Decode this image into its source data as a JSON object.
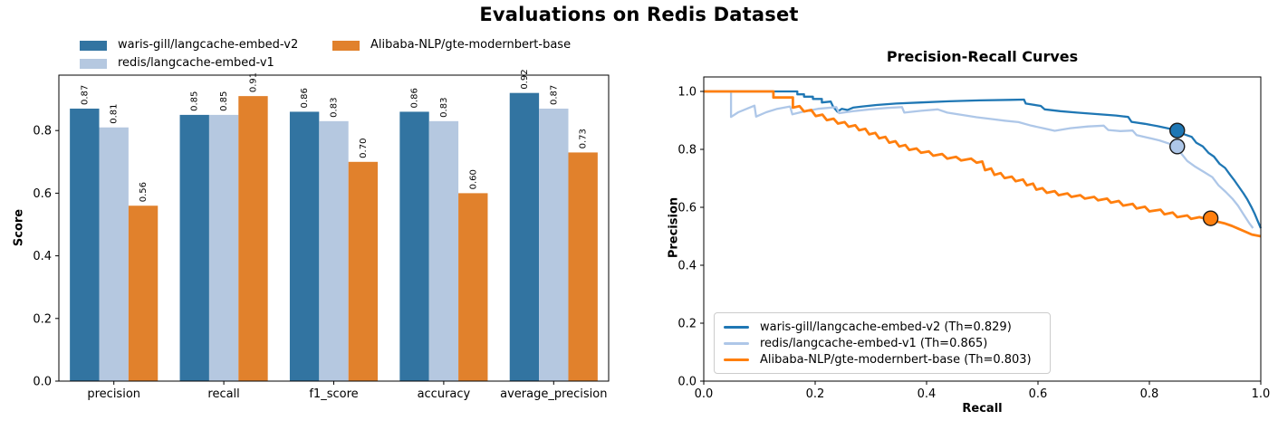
{
  "figure_title": "Evaluations on Redis Dataset",
  "chart_data": [
    {
      "type": "bar",
      "ylabel": "Score",
      "categories": [
        "precision",
        "recall",
        "f1_score",
        "accuracy",
        "average_precision"
      ],
      "yticks": [
        0.0,
        0.2,
        0.4,
        0.6,
        0.8
      ],
      "ylim": [
        0,
        0.977
      ],
      "value_label_format": ".2f",
      "legend_position": "upper-left frameless 2-col",
      "series": [
        {
          "name": "waris-gill/langcache-embed-v2",
          "color": "#3274a1",
          "values": [
            0.87,
            0.85,
            0.86,
            0.86,
            0.92
          ]
        },
        {
          "name": "redis/langcache-embed-v1",
          "color": "#b5c8e0",
          "values": [
            0.81,
            0.85,
            0.83,
            0.83,
            0.87
          ]
        },
        {
          "name": "Alibaba-NLP/gte-modernbert-base",
          "color": "#e1812c",
          "values": [
            0.56,
            0.91,
            0.7,
            0.6,
            0.73
          ]
        }
      ]
    },
    {
      "type": "line",
      "title": "Precision-Recall Curves",
      "xlabel": "Recall",
      "ylabel": "Precision",
      "xlim": [
        0,
        1.0
      ],
      "ylim": [
        0,
        1.05
      ],
      "xticks": [
        0.0,
        0.2,
        0.4,
        0.6,
        0.8,
        1.0
      ],
      "yticks": [
        0.0,
        0.2,
        0.4,
        0.6,
        0.8,
        1.0
      ],
      "legend_position": "lower-left framed",
      "series": [
        {
          "name": "waris-gill/langcache-embed-v2 (Th=0.829)",
          "color": "#1f77b4",
          "threshold_marker": [
            0.85,
            0.865
          ],
          "points": [
            [
              0.0,
              1.0
            ],
            [
              0.168,
              1.0
            ],
            [
              0.168,
              0.99
            ],
            [
              0.18,
              0.99
            ],
            [
              0.18,
              0.982
            ],
            [
              0.196,
              0.982
            ],
            [
              0.196,
              0.974
            ],
            [
              0.212,
              0.974
            ],
            [
              0.212,
              0.962
            ],
            [
              0.228,
              0.965
            ],
            [
              0.232,
              0.948
            ],
            [
              0.24,
              0.93
            ],
            [
              0.248,
              0.94
            ],
            [
              0.258,
              0.936
            ],
            [
              0.268,
              0.944
            ],
            [
              0.285,
              0.948
            ],
            [
              0.31,
              0.953
            ],
            [
              0.345,
              0.958
            ],
            [
              0.39,
              0.962
            ],
            [
              0.44,
              0.966
            ],
            [
              0.495,
              0.969
            ],
            [
              0.55,
              0.971
            ],
            [
              0.575,
              0.972
            ],
            [
              0.578,
              0.958
            ],
            [
              0.605,
              0.95
            ],
            [
              0.612,
              0.938
            ],
            [
              0.64,
              0.932
            ],
            [
              0.67,
              0.927
            ],
            [
              0.705,
              0.922
            ],
            [
              0.74,
              0.917
            ],
            [
              0.762,
              0.912
            ],
            [
              0.768,
              0.895
            ],
            [
              0.792,
              0.888
            ],
            [
              0.815,
              0.88
            ],
            [
              0.835,
              0.872
            ],
            [
              0.85,
              0.865
            ],
            [
              0.863,
              0.852
            ],
            [
              0.876,
              0.843
            ],
            [
              0.884,
              0.823
            ],
            [
              0.896,
              0.81
            ],
            [
              0.906,
              0.788
            ],
            [
              0.916,
              0.775
            ],
            [
              0.926,
              0.75
            ],
            [
              0.936,
              0.736
            ],
            [
              0.945,
              0.712
            ],
            [
              0.953,
              0.692
            ],
            [
              0.961,
              0.67
            ],
            [
              0.969,
              0.648
            ],
            [
              0.976,
              0.627
            ],
            [
              0.983,
              0.602
            ],
            [
              0.989,
              0.578
            ],
            [
              0.994,
              0.555
            ],
            [
              1.0,
              0.528
            ]
          ]
        },
        {
          "name": "redis/langcache-embed-v1 (Th=0.865)",
          "color": "#aec7e8",
          "threshold_marker": [
            0.85,
            0.81
          ],
          "points": [
            [
              0.0,
              1.0
            ],
            [
              0.049,
              1.0
            ],
            [
              0.049,
              0.912
            ],
            [
              0.062,
              0.928
            ],
            [
              0.078,
              0.941
            ],
            [
              0.091,
              0.951
            ],
            [
              0.094,
              0.913
            ],
            [
              0.112,
              0.928
            ],
            [
              0.132,
              0.94
            ],
            [
              0.155,
              0.948
            ],
            [
              0.159,
              0.921
            ],
            [
              0.18,
              0.931
            ],
            [
              0.205,
              0.94
            ],
            [
              0.238,
              0.946
            ],
            [
              0.243,
              0.925
            ],
            [
              0.268,
              0.932
            ],
            [
              0.298,
              0.938
            ],
            [
              0.33,
              0.943
            ],
            [
              0.356,
              0.946
            ],
            [
              0.36,
              0.927
            ],
            [
              0.39,
              0.933
            ],
            [
              0.42,
              0.938
            ],
            [
              0.437,
              0.927
            ],
            [
              0.463,
              0.919
            ],
            [
              0.49,
              0.911
            ],
            [
              0.515,
              0.905
            ],
            [
              0.54,
              0.899
            ],
            [
              0.565,
              0.894
            ],
            [
              0.588,
              0.882
            ],
            [
              0.612,
              0.872
            ],
            [
              0.63,
              0.864
            ],
            [
              0.658,
              0.873
            ],
            [
              0.69,
              0.879
            ],
            [
              0.718,
              0.882
            ],
            [
              0.726,
              0.867
            ],
            [
              0.748,
              0.863
            ],
            [
              0.77,
              0.865
            ],
            [
              0.777,
              0.849
            ],
            [
              0.798,
              0.84
            ],
            [
              0.818,
              0.831
            ],
            [
              0.838,
              0.818
            ],
            [
              0.85,
              0.81
            ],
            [
              0.857,
              0.786
            ],
            [
              0.868,
              0.76
            ],
            [
              0.881,
              0.742
            ],
            [
              0.898,
              0.722
            ],
            [
              0.913,
              0.704
            ],
            [
              0.924,
              0.676
            ],
            [
              0.937,
              0.653
            ],
            [
              0.949,
              0.63
            ],
            [
              0.959,
              0.606
            ],
            [
              0.969,
              0.576
            ],
            [
              0.979,
              0.546
            ],
            [
              0.986,
              0.528
            ]
          ]
        },
        {
          "name": "Alibaba-NLP/gte-modernbert-base (Th=0.803)",
          "color": "#ff7f0e",
          "threshold_marker": [
            0.91,
            0.562
          ],
          "points": [
            [
              0.0,
              1.0
            ],
            [
              0.125,
              1.0
            ],
            [
              0.125,
              0.979
            ],
            [
              0.16,
              0.979
            ],
            [
              0.16,
              0.944
            ],
            [
              0.172,
              0.949
            ],
            [
              0.18,
              0.931
            ],
            [
              0.193,
              0.936
            ],
            [
              0.201,
              0.915
            ],
            [
              0.213,
              0.92
            ],
            [
              0.221,
              0.901
            ],
            [
              0.233,
              0.906
            ],
            [
              0.241,
              0.889
            ],
            [
              0.253,
              0.894
            ],
            [
              0.26,
              0.878
            ],
            [
              0.272,
              0.883
            ],
            [
              0.279,
              0.866
            ],
            [
              0.29,
              0.871
            ],
            [
              0.297,
              0.852
            ],
            [
              0.308,
              0.857
            ],
            [
              0.315,
              0.838
            ],
            [
              0.326,
              0.843
            ],
            [
              0.333,
              0.823
            ],
            [
              0.344,
              0.828
            ],
            [
              0.351,
              0.81
            ],
            [
              0.362,
              0.815
            ],
            [
              0.369,
              0.798
            ],
            [
              0.382,
              0.803
            ],
            [
              0.39,
              0.788
            ],
            [
              0.404,
              0.793
            ],
            [
              0.412,
              0.778
            ],
            [
              0.428,
              0.784
            ],
            [
              0.437,
              0.768
            ],
            [
              0.453,
              0.774
            ],
            [
              0.462,
              0.762
            ],
            [
              0.48,
              0.768
            ],
            [
              0.49,
              0.754
            ],
            [
              0.5,
              0.758
            ],
            [
              0.505,
              0.728
            ],
            [
              0.516,
              0.734
            ],
            [
              0.522,
              0.712
            ],
            [
              0.533,
              0.718
            ],
            [
              0.54,
              0.701
            ],
            [
              0.553,
              0.706
            ],
            [
              0.56,
              0.69
            ],
            [
              0.573,
              0.696
            ],
            [
              0.58,
              0.676
            ],
            [
              0.591,
              0.682
            ],
            [
              0.597,
              0.661
            ],
            [
              0.608,
              0.666
            ],
            [
              0.616,
              0.65
            ],
            [
              0.63,
              0.656
            ],
            [
              0.637,
              0.642
            ],
            [
              0.653,
              0.648
            ],
            [
              0.66,
              0.636
            ],
            [
              0.676,
              0.642
            ],
            [
              0.684,
              0.63
            ],
            [
              0.701,
              0.636
            ],
            [
              0.708,
              0.624
            ],
            [
              0.724,
              0.63
            ],
            [
              0.731,
              0.616
            ],
            [
              0.745,
              0.622
            ],
            [
              0.753,
              0.606
            ],
            [
              0.77,
              0.612
            ],
            [
              0.777,
              0.596
            ],
            [
              0.792,
              0.602
            ],
            [
              0.8,
              0.586
            ],
            [
              0.82,
              0.592
            ],
            [
              0.827,
              0.576
            ],
            [
              0.842,
              0.582
            ],
            [
              0.85,
              0.566
            ],
            [
              0.868,
              0.572
            ],
            [
              0.875,
              0.56
            ],
            [
              0.89,
              0.566
            ],
            [
              0.902,
              0.56
            ],
            [
              0.91,
              0.564
            ],
            [
              0.923,
              0.55
            ],
            [
              0.936,
              0.544
            ],
            [
              0.948,
              0.536
            ],
            [
              0.96,
              0.526
            ],
            [
              0.972,
              0.516
            ],
            [
              0.984,
              0.506
            ],
            [
              1.0,
              0.5
            ]
          ]
        }
      ]
    }
  ]
}
